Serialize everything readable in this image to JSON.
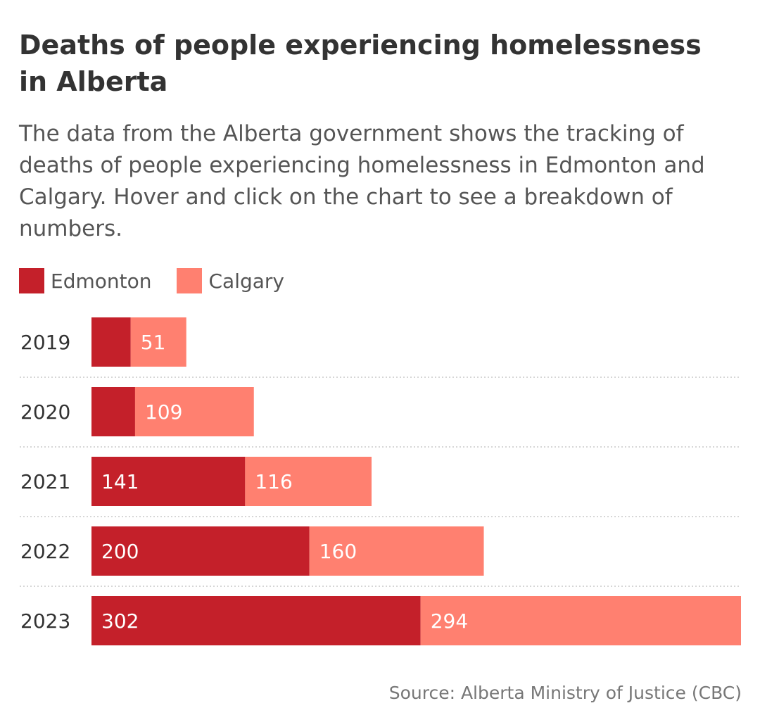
{
  "chart_data": {
    "type": "bar",
    "orientation": "horizontal",
    "stacked": true,
    "title": "Deaths of people experiencing homelessness in Alberta",
    "subtitle": "The data from the Alberta government shows the tracking of deaths of people experiencing homelessness in Edmonton and Calgary. Hover and click on the chart to see a breakdown of numbers.",
    "categories": [
      "2019",
      "2020",
      "2021",
      "2022",
      "2023"
    ],
    "series": [
      {
        "name": "Edmonton",
        "color": "#c4202a",
        "values": [
          36,
          40,
          141,
          200,
          302
        ],
        "labels": [
          "",
          "",
          "141",
          "200",
          "302"
        ]
      },
      {
        "name": "Calgary",
        "color": "#ff8070",
        "values": [
          51,
          109,
          116,
          160,
          294
        ],
        "labels": [
          "51",
          "109",
          "116",
          "160",
          "294"
        ]
      }
    ],
    "xlim": [
      0,
      596
    ],
    "grid": false,
    "legend_position": "top-left",
    "source": "Source: Alberta Ministry of Justice (CBC)"
  }
}
